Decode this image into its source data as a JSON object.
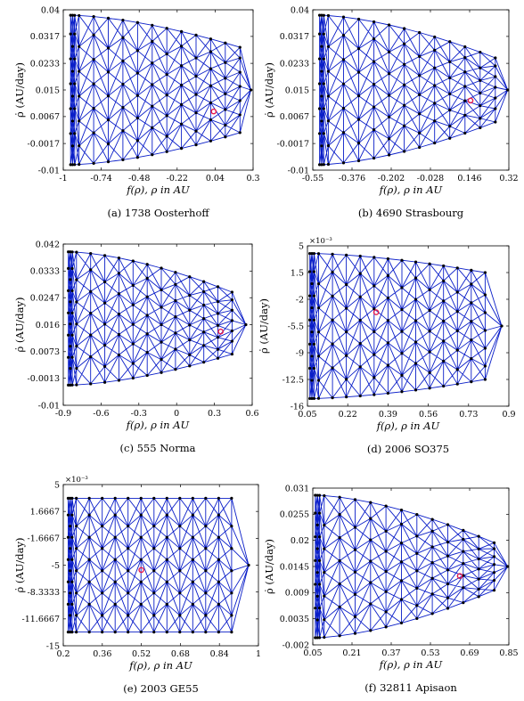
{
  "figure": {
    "colors": {
      "mesh": "#0a1ec8",
      "node": "#000000",
      "marker": "#e8194a"
    },
    "panels": [
      {
        "caption": "(a) 1738 Oosterhoff",
        "xlabel": "f(ρ),  ρ in AU",
        "ylabel": "ρ̇ (AU/day)",
        "scale_note": "",
        "xticks": [
          "-1",
          "-0.74",
          "-0.48",
          "-0.22",
          "0.04",
          "0.3"
        ],
        "xtick_values": [
          -1,
          -0.74,
          -0.48,
          -0.22,
          0.04,
          0.3
        ],
        "yticks": [
          "0.04",
          "0.0317",
          "0.0233",
          "0.015",
          "0.0067",
          "-0.0017",
          "-0.01"
        ],
        "ytick_values": [
          0.04,
          0.0317,
          0.0233,
          0.015,
          0.0067,
          -0.0017,
          -0.01
        ],
        "xlim": [
          -1,
          0.3
        ],
        "ylim": [
          -0.01,
          0.04
        ],
        "mesh": {
          "x_left": -0.95,
          "x_right_column": 0.21,
          "x_tip": 0.285,
          "y_center": 0.015,
          "left_top": 0.0383,
          "left_bottom": -0.0083,
          "right_top": 0.0283,
          "right_bottom": 0.0017,
          "columns": 12,
          "rows": 6
        },
        "marker": [
          0.03,
          0.0083
        ]
      },
      {
        "caption": "(b) 4690 Strasbourg",
        "xlabel": "f(ρ),  ρ in AU",
        "ylabel": "ρ̇ (AU/day)",
        "scale_note": "",
        "xticks": [
          "-0.55",
          "-0.376",
          "-0.202",
          "-0.028",
          "0.146",
          "0.32"
        ],
        "xtick_values": [
          -0.55,
          -0.376,
          -0.202,
          -0.028,
          0.146,
          0.32
        ],
        "yticks": [
          "0.04",
          "0.0317",
          "0.0233",
          "0.015",
          "0.0067",
          "-0.0017",
          "-0.01"
        ],
        "ytick_values": [
          0.04,
          0.0317,
          0.0233,
          0.015,
          0.0067,
          -0.0017,
          -0.01
        ],
        "xlim": [
          -0.55,
          0.32
        ],
        "ylim": [
          -0.01,
          0.04
        ],
        "mesh": {
          "x_left": -0.52,
          "x_right_column": 0.26,
          "x_tip": 0.315,
          "y_center": 0.015,
          "left_top": 0.0383,
          "left_bottom": -0.0083,
          "right_top": 0.025,
          "right_bottom": 0.005,
          "columns": 12,
          "rows": 6
        },
        "marker": [
          0.15,
          0.0117
        ]
      },
      {
        "caption": "(c) 555 Norma",
        "xlabel": "f(ρ),  ρ in AU",
        "ylabel": "ρ̇ (AU/day)",
        "scale_note": "",
        "xticks": [
          "-0.9",
          "-0.6",
          "-0.3",
          "0",
          "0.3",
          "0.6"
        ],
        "xtick_values": [
          -0.9,
          -0.6,
          -0.3,
          0,
          0.3,
          0.6
        ],
        "yticks": [
          "0.042",
          "0.0333",
          "0.0247",
          "0.016",
          "0.0073",
          "-0.0013",
          "-0.01"
        ],
        "ytick_values": [
          0.042,
          0.0333,
          0.0247,
          0.016,
          0.0073,
          -0.0013,
          -0.01
        ],
        "xlim": [
          -0.9,
          0.6
        ],
        "ylim": [
          -0.01,
          0.042
        ],
        "mesh": {
          "x_left": -0.86,
          "x_right_column": 0.44,
          "x_tip": 0.55,
          "y_center": 0.016,
          "left_top": 0.0395,
          "left_bottom": -0.0035,
          "right_top": 0.0265,
          "right_bottom": 0.0065,
          "columns": 12,
          "rows": 6
        },
        "marker": [
          0.35,
          0.0138
        ]
      },
      {
        "caption": "(d) 2006 SO375",
        "xlabel": "f(ρ),  ρ in AU",
        "ylabel": "ρ̇ (AU/day)",
        "scale_note": "×10⁻³",
        "xticks": [
          "0.05",
          "0.22",
          "0.39",
          "0.56",
          "0.73",
          "0.9"
        ],
        "xtick_values": [
          0.05,
          0.22,
          0.39,
          0.56,
          0.73,
          0.9
        ],
        "yticks": [
          "5",
          "1.5",
          "-2",
          "-5.5",
          "-9",
          "-12.5",
          "-16"
        ],
        "ytick_values": [
          5,
          1.5,
          -2,
          -5.5,
          -9,
          -12.5,
          -16
        ],
        "xlim": [
          0.05,
          0.9
        ],
        "ylim": [
          -16,
          5
        ],
        "mesh": {
          "x_left": 0.06,
          "x_right_column": 0.8,
          "x_tip": 0.87,
          "y_center": -5.5,
          "left_top": 4.0,
          "left_bottom": -15.0,
          "right_top": 1.5,
          "right_bottom": -12.5,
          "columns": 13,
          "rows": 6
        },
        "marker": [
          0.34,
          -3.7
        ]
      },
      {
        "caption": "(e) 2003 GE55",
        "xlabel": "f(ρ),  ρ in AU",
        "ylabel": "ρ̇ (AU/day)",
        "scale_note": "×10⁻³",
        "xticks": [
          "0.2",
          "0.36",
          "0.52",
          "0.68",
          "0.84",
          "1"
        ],
        "xtick_values": [
          0.2,
          0.36,
          0.52,
          0.68,
          0.84,
          1
        ],
        "yticks": [
          "5",
          "1.6667",
          "-1.6667",
          "-5",
          "-8.3333",
          "-11.6667",
          "-15"
        ],
        "ytick_values": [
          5,
          1.6667,
          -1.6667,
          -5,
          -8.3333,
          -11.6667,
          -15
        ],
        "xlim": [
          0.2,
          1
        ],
        "ylim": [
          -15,
          5
        ],
        "mesh": {
          "x_left": 0.22,
          "x_right_column": 0.89,
          "x_tip": 0.96,
          "y_center": -5,
          "left_top": 3.3,
          "left_bottom": -13.3,
          "right_top": 3.3,
          "right_bottom": -13.3,
          "columns": 13,
          "rows": 6
        },
        "marker": [
          0.52,
          -5.6
        ]
      },
      {
        "caption": "(f) 32811 Apisaon",
        "xlabel": "f(ρ),  ρ in AU",
        "ylabel": "ρ̇ (AU/day)",
        "scale_note": "",
        "xticks": [
          "0.05",
          "0.21",
          "0.37",
          "0.53",
          "0.69",
          "0.85"
        ],
        "xtick_values": [
          0.05,
          0.21,
          0.37,
          0.53,
          0.69,
          0.85
        ],
        "yticks": [
          "0.031",
          "0.0255",
          "0.02",
          "0.0145",
          "0.009",
          "0.0035",
          "-0.002"
        ],
        "ytick_values": [
          0.031,
          0.0255,
          0.02,
          0.0145,
          0.009,
          0.0035,
          -0.002
        ],
        "xlim": [
          0.05,
          0.85
        ],
        "ylim": [
          -0.002,
          0.031
        ],
        "mesh": {
          "x_left": 0.06,
          "x_right_column": 0.79,
          "x_tip": 0.845,
          "y_center": 0.0145,
          "left_top": 0.0295,
          "left_bottom": -0.0005,
          "right_top": 0.0195,
          "right_bottom": 0.0095,
          "columns": 12,
          "rows": 6
        },
        "marker": [
          0.65,
          0.0125
        ]
      }
    ]
  }
}
